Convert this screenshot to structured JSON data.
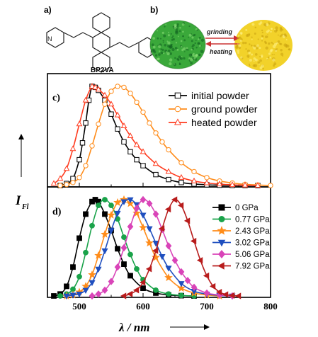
{
  "panels": {
    "a_label": "a)",
    "b_label": "b)",
    "molecule_name": "BP2VA",
    "arrow_top_label": "grinding",
    "arrow_bottom_label": "heating",
    "powder_colors": {
      "initial": "#3aa83a",
      "ground": "#f2d22a"
    }
  },
  "chart_data": [
    {
      "type": "line",
      "panel": "c)",
      "x_axis": "shared",
      "xlim": [
        450,
        800
      ],
      "y_scale": "normalized intensity (no tick labels)",
      "legend_position": "top-right",
      "series": [
        {
          "name": "initial powder",
          "color": "#000000",
          "marker": "square-open",
          "x": [
            470,
            480,
            490,
            500,
            505,
            510,
            515,
            520,
            525,
            530,
            540,
            550,
            560,
            570,
            580,
            590,
            600,
            620,
            640,
            660,
            680,
            700,
            720,
            740,
            760,
            780
          ],
          "y": [
            0.0,
            0.02,
            0.07,
            0.26,
            0.43,
            0.63,
            0.86,
            1.0,
            0.99,
            0.96,
            0.86,
            0.72,
            0.57,
            0.44,
            0.34,
            0.26,
            0.2,
            0.11,
            0.06,
            0.03,
            0.015,
            0.007,
            0.003,
            0.001,
            0.0,
            0.0
          ]
        },
        {
          "name": "ground powder",
          "color": "#ff8c1a",
          "marker": "circle-open",
          "x": [
            470,
            480,
            490,
            500,
            510,
            520,
            530,
            540,
            550,
            560,
            570,
            580,
            590,
            600,
            610,
            620,
            630,
            640,
            660,
            680,
            700,
            720,
            740,
            760,
            780,
            800
          ],
          "y": [
            0.0,
            0.01,
            0.03,
            0.08,
            0.2,
            0.4,
            0.62,
            0.82,
            0.95,
            1.0,
            0.99,
            0.93,
            0.84,
            0.74,
            0.63,
            0.53,
            0.44,
            0.36,
            0.23,
            0.14,
            0.08,
            0.045,
            0.025,
            0.012,
            0.005,
            0.0
          ]
        },
        {
          "name": "heated powder",
          "color": "#ff3b1f",
          "marker": "triangle-open",
          "x": [
            460,
            470,
            480,
            490,
            500,
            510,
            520,
            525,
            530,
            540,
            550,
            560,
            570,
            580,
            590,
            600,
            620,
            640,
            660,
            680,
            700,
            720,
            740,
            760,
            780
          ],
          "y": [
            0.02,
            0.07,
            0.17,
            0.37,
            0.62,
            0.86,
            1.0,
            0.99,
            0.97,
            0.91,
            0.82,
            0.71,
            0.6,
            0.5,
            0.41,
            0.34,
            0.22,
            0.14,
            0.08,
            0.045,
            0.025,
            0.014,
            0.007,
            0.003,
            0.0
          ]
        }
      ]
    },
    {
      "type": "line",
      "panel": "d)",
      "xlim": [
        450,
        800
      ],
      "x_ticks": [
        500,
        600,
        700,
        800
      ],
      "y_scale": "normalized intensity (no tick labels)",
      "legend_position": "top-right",
      "series": [
        {
          "name": "0 GPa",
          "color": "#000000",
          "marker": "square-filled",
          "x": [
            460,
            470,
            480,
            490,
            500,
            510,
            520,
            525,
            530,
            540,
            550,
            560,
            570,
            580,
            600,
            620,
            640,
            660,
            680
          ],
          "y": [
            0.0,
            0.02,
            0.1,
            0.3,
            0.6,
            0.85,
            0.98,
            1.0,
            0.98,
            0.85,
            0.68,
            0.49,
            0.33,
            0.21,
            0.08,
            0.03,
            0.01,
            0.003,
            0.0
          ]
        },
        {
          "name": "0.77 GPa",
          "color": "#1aa34a",
          "marker": "circle-filled",
          "x": [
            470,
            480,
            490,
            500,
            510,
            520,
            530,
            540,
            550,
            560,
            570,
            580,
            590,
            600,
            620,
            640,
            660,
            680
          ],
          "y": [
            0.0,
            0.02,
            0.07,
            0.2,
            0.45,
            0.73,
            0.94,
            1.0,
            0.94,
            0.8,
            0.61,
            0.43,
            0.28,
            0.17,
            0.06,
            0.02,
            0.005,
            0.0
          ]
        },
        {
          "name": "2.43 GPa",
          "color": "#ff8c1a",
          "marker": "star",
          "x": [
            480,
            490,
            500,
            510,
            520,
            530,
            540,
            550,
            560,
            570,
            580,
            590,
            600,
            610,
            620,
            640,
            660,
            680,
            700,
            720
          ],
          "y": [
            0.0,
            0.01,
            0.04,
            0.1,
            0.22,
            0.42,
            0.64,
            0.84,
            0.97,
            1.0,
            0.96,
            0.86,
            0.71,
            0.55,
            0.4,
            0.19,
            0.08,
            0.03,
            0.01,
            0.0
          ]
        },
        {
          "name": "3.02 GPa",
          "color": "#1f4fbf",
          "marker": "triangle-down-filled",
          "x": [
            480,
            490,
            500,
            510,
            520,
            530,
            540,
            550,
            560,
            570,
            580,
            590,
            600,
            610,
            620,
            630,
            640,
            660,
            680,
            700,
            720,
            740
          ],
          "y": [
            0.0,
            0.01,
            0.02,
            0.06,
            0.14,
            0.28,
            0.47,
            0.68,
            0.86,
            0.98,
            1.0,
            0.95,
            0.84,
            0.7,
            0.55,
            0.41,
            0.29,
            0.13,
            0.05,
            0.02,
            0.006,
            0.0
          ]
        },
        {
          "name": "5.06 GPa",
          "color": "#d944b8",
          "marker": "diamond-filled",
          "x": [
            520,
            530,
            540,
            550,
            560,
            570,
            580,
            590,
            600,
            610,
            620,
            630,
            640,
            650,
            660,
            670,
            680,
            700,
            720,
            740
          ],
          "y": [
            0.0,
            0.02,
            0.06,
            0.15,
            0.3,
            0.5,
            0.72,
            0.91,
            1.0,
            0.96,
            0.85,
            0.69,
            0.52,
            0.37,
            0.25,
            0.16,
            0.09,
            0.03,
            0.01,
            0.0
          ]
        },
        {
          "name": "7.92 GPa",
          "color": "#b81c1c",
          "marker": "triangle-left-filled",
          "x": [
            570,
            580,
            590,
            600,
            610,
            620,
            630,
            640,
            650,
            660,
            670,
            680,
            690,
            700,
            710,
            720,
            730,
            740,
            750
          ],
          "y": [
            0.0,
            0.02,
            0.06,
            0.14,
            0.28,
            0.47,
            0.7,
            0.9,
            1.0,
            0.94,
            0.78,
            0.57,
            0.37,
            0.21,
            0.1,
            0.04,
            0.015,
            0.005,
            0.0
          ]
        }
      ]
    }
  ],
  "axes": {
    "y_label_main": "I",
    "y_label_sub": "Fl",
    "x_label": "λ / nm"
  }
}
